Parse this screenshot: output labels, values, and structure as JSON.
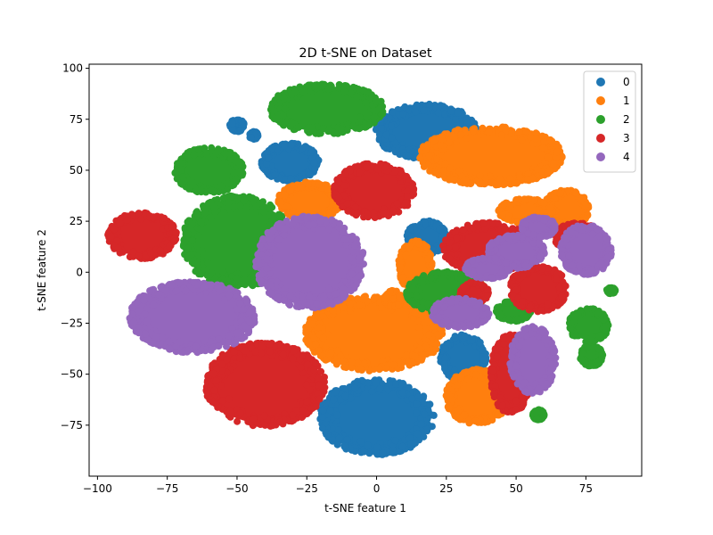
{
  "chart_data": {
    "type": "scatter",
    "title": "2D t-SNE on Dataset",
    "xlabel": "t-SNE feature 1",
    "ylabel": "t-SNE feature 2",
    "xlim": [
      -103,
      95
    ],
    "ylim": [
      -100,
      102
    ],
    "xticks": [
      -100,
      -75,
      -50,
      -25,
      0,
      25,
      50,
      75
    ],
    "yticks": [
      -75,
      -50,
      -25,
      0,
      25,
      50,
      75,
      100
    ],
    "xtick_labels": [
      "−100",
      "−75",
      "−50",
      "−25",
      "0",
      "25",
      "50",
      "75"
    ],
    "ytick_labels": [
      "−75",
      "−50",
      "−25",
      "0",
      "25",
      "50",
      "75",
      "100"
    ],
    "grid": false,
    "legend_position": "top-right",
    "series": [
      {
        "name": "0",
        "color": "#1f77b4",
        "clusters": [
          {
            "cx": 18,
            "cy": 69,
            "rx": 18,
            "ry": 13
          },
          {
            "cx": -31,
            "cy": 54,
            "rx": 10,
            "ry": 9
          },
          {
            "cx": -50,
            "cy": 72,
            "rx": 2.5,
            "ry": 3
          },
          {
            "cx": -44,
            "cy": 67,
            "rx": 1.5,
            "ry": 2
          },
          {
            "cx": 0,
            "cy": -71,
            "rx": 20,
            "ry": 18
          },
          {
            "cx": 31,
            "cy": -42,
            "rx": 8,
            "ry": 11
          },
          {
            "cx": 18,
            "cy": 17,
            "rx": 7,
            "ry": 8
          }
        ]
      },
      {
        "name": "1",
        "color": "#ff7f0e",
        "clusters": [
          {
            "cx": 41,
            "cy": 57,
            "rx": 25,
            "ry": 14
          },
          {
            "cx": -24,
            "cy": 35,
            "rx": 11,
            "ry": 9
          },
          {
            "cx": -1,
            "cy": -30,
            "rx": 24,
            "ry": 18
          },
          {
            "cx": 36,
            "cy": -61,
            "rx": 11,
            "ry": 13
          },
          {
            "cx": 14,
            "cy": 3,
            "rx": 6,
            "ry": 12
          },
          {
            "cx": 68,
            "cy": 31,
            "rx": 8,
            "ry": 9
          },
          {
            "cx": 54,
            "cy": 30,
            "rx": 10,
            "ry": 6
          },
          {
            "cx": 6,
            "cy": -13,
            "rx": 3,
            "ry": 4
          }
        ]
      },
      {
        "name": "2",
        "color": "#2ca02c",
        "clusters": [
          {
            "cx": -18,
            "cy": 80,
            "rx": 20,
            "ry": 12
          },
          {
            "cx": -60,
            "cy": 50,
            "rx": 12,
            "ry": 11
          },
          {
            "cx": -50,
            "cy": 15,
            "rx": 19,
            "ry": 22
          },
          {
            "cx": 76,
            "cy": -26,
            "rx": 7,
            "ry": 8
          },
          {
            "cx": 77,
            "cy": -41,
            "rx": 4,
            "ry": 5
          },
          {
            "cx": 25,
            "cy": -10,
            "rx": 14,
            "ry": 10
          },
          {
            "cx": 58,
            "cy": -70,
            "rx": 2,
            "ry": 2.5
          },
          {
            "cx": 84,
            "cy": -9,
            "rx": 1.5,
            "ry": 1.5
          },
          {
            "cx": 49,
            "cy": -19,
            "rx": 6,
            "ry": 5
          }
        ]
      },
      {
        "name": "3",
        "color": "#d62728",
        "clusters": [
          {
            "cx": -84,
            "cy": 18,
            "rx": 12,
            "ry": 11
          },
          {
            "cx": -1,
            "cy": 40,
            "rx": 14,
            "ry": 13
          },
          {
            "cx": -40,
            "cy": -55,
            "rx": 21,
            "ry": 20
          },
          {
            "cx": 48,
            "cy": -50,
            "rx": 7,
            "ry": 19
          },
          {
            "cx": 40,
            "cy": 12,
            "rx": 16,
            "ry": 12
          },
          {
            "cx": 58,
            "cy": -8,
            "rx": 10,
            "ry": 11
          },
          {
            "cx": 72,
            "cy": 17,
            "rx": 8,
            "ry": 7
          },
          {
            "cx": 35,
            "cy": -10,
            "rx": 5,
            "ry": 5
          }
        ]
      },
      {
        "name": "4",
        "color": "#9467bd",
        "clusters": [
          {
            "cx": -66,
            "cy": -22,
            "rx": 22,
            "ry": 17
          },
          {
            "cx": -24,
            "cy": 5,
            "rx": 19,
            "ry": 22
          },
          {
            "cx": 56,
            "cy": -43,
            "rx": 8,
            "ry": 16
          },
          {
            "cx": 75,
            "cy": 11,
            "rx": 9,
            "ry": 12
          },
          {
            "cx": 30,
            "cy": -20,
            "rx": 10,
            "ry": 7
          },
          {
            "cx": 50,
            "cy": 10,
            "rx": 10,
            "ry": 8
          },
          {
            "cx": 40,
            "cy": 2,
            "rx": 8,
            "ry": 5
          },
          {
            "cx": 58,
            "cy": 22,
            "rx": 6,
            "ry": 5
          }
        ]
      }
    ]
  }
}
